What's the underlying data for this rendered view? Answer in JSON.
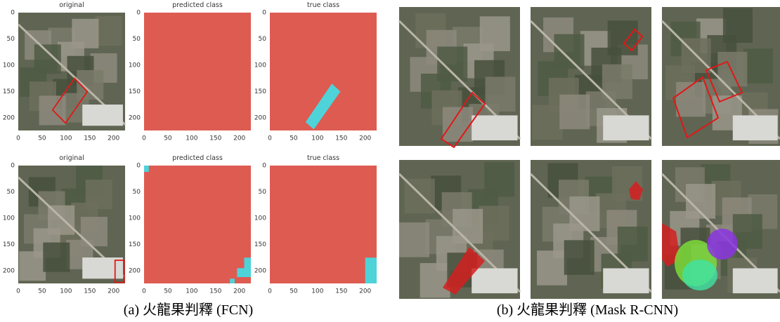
{
  "fcn": {
    "panels": [
      {
        "title": "original"
      },
      {
        "title": "predicted class"
      },
      {
        "title": "true class"
      },
      {
        "title": "original"
      },
      {
        "title": "predicted class"
      },
      {
        "title": "true class"
      }
    ],
    "yticks": [
      0,
      50,
      100,
      150,
      200
    ],
    "xticks": [
      0,
      50,
      100,
      150,
      200
    ]
  },
  "captions": {
    "a": "(a)  火龍果判釋  (FCN)",
    "b": "(b)  火龍果判釋  (Mask R-CNN)"
  }
}
